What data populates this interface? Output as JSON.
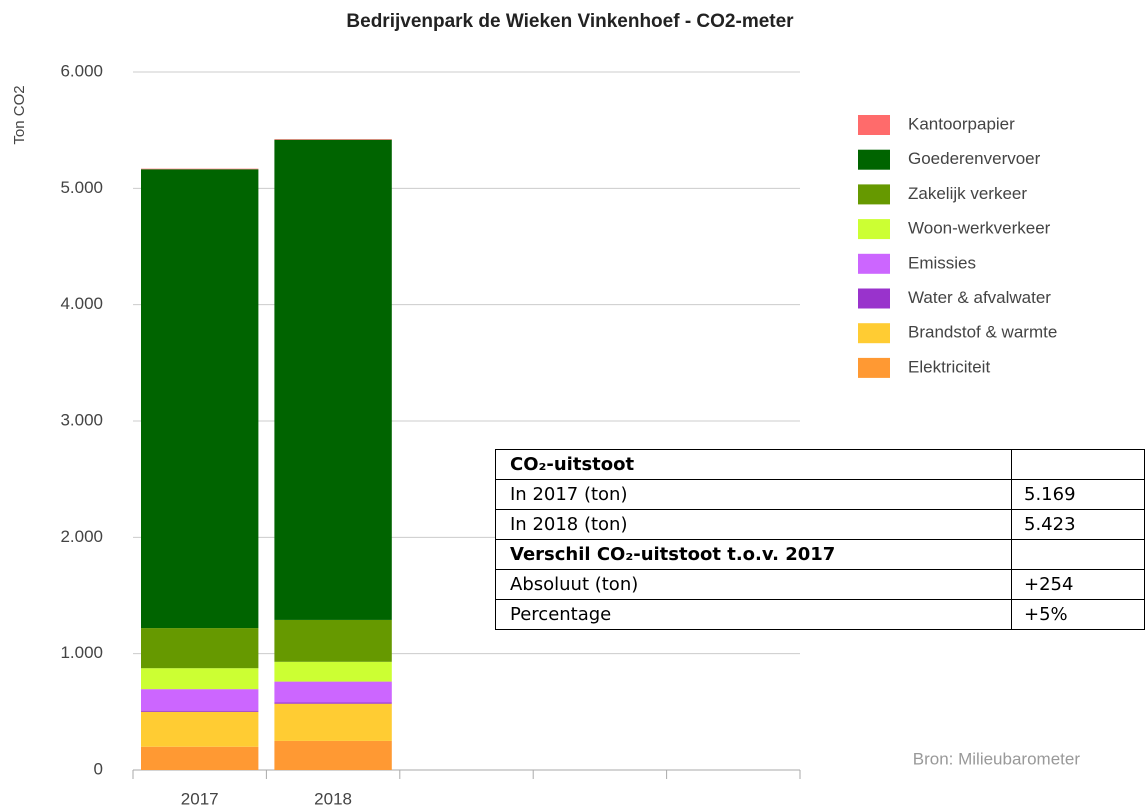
{
  "chart_data": {
    "type": "bar",
    "stacked": true,
    "title": "Bedrijvenpark de Wieken Vinkenhoef - CO2-meter",
    "ylabel": "Ton CO2",
    "categories": [
      "2017",
      "2018",
      null,
      null,
      null
    ],
    "series": [
      {
        "name": "Elektriciteit",
        "color": "#ff9933",
        "values": [
          200,
          250,
          null,
          null,
          null
        ]
      },
      {
        "name": "Brandstof & warmte",
        "color": "#ffcc33",
        "values": [
          300,
          320,
          null,
          null,
          null
        ]
      },
      {
        "name": "Water & afvalwater",
        "color": "#9933cc",
        "values": [
          10,
          10,
          null,
          null,
          null
        ]
      },
      {
        "name": "Emissies",
        "color": "#cc66ff",
        "values": [
          185,
          180,
          null,
          null,
          null
        ]
      },
      {
        "name": "Woon-werkverkeer",
        "color": "#ccff33",
        "values": [
          180,
          170,
          null,
          null,
          null
        ]
      },
      {
        "name": "Zakelijk verkeer",
        "color": "#669900",
        "values": [
          345,
          360,
          null,
          null,
          null
        ]
      },
      {
        "name": "Goederenvervoer",
        "color": "#006400",
        "values": [
          3944,
          4128,
          null,
          null,
          null
        ]
      },
      {
        "name": "Kantoorpapier",
        "color": "#ff6b6b",
        "values": [
          5,
          5,
          null,
          null,
          null
        ]
      }
    ],
    "ylim": [
      0,
      6000
    ],
    "yticks": [
      0,
      {
        "value": 1000,
        "label": "1.000"
      },
      {
        "value": 2000,
        "label": "2.000"
      },
      {
        "value": 3000,
        "label": "3.000"
      },
      {
        "value": 4000,
        "label": "4.000"
      },
      {
        "value": 5000,
        "label": "5.000"
      },
      {
        "value": 6000,
        "label": "6.000"
      }
    ],
    "grid": true,
    "legend": "right",
    "annotation": "Bron: Milieubarometer"
  },
  "table": {
    "rows": [
      [
        "CO₂-uitstoot"
      ],
      [
        "In 2017 (ton)",
        "5.169"
      ],
      [
        "In 2018 (ton)",
        "5.423"
      ],
      [
        "Verschil CO₂-uitstoot t.o.v. 2017"
      ],
      [
        "Absoluut (ton)",
        "+254"
      ],
      [
        "Percentage",
        "+5%"
      ]
    ]
  }
}
